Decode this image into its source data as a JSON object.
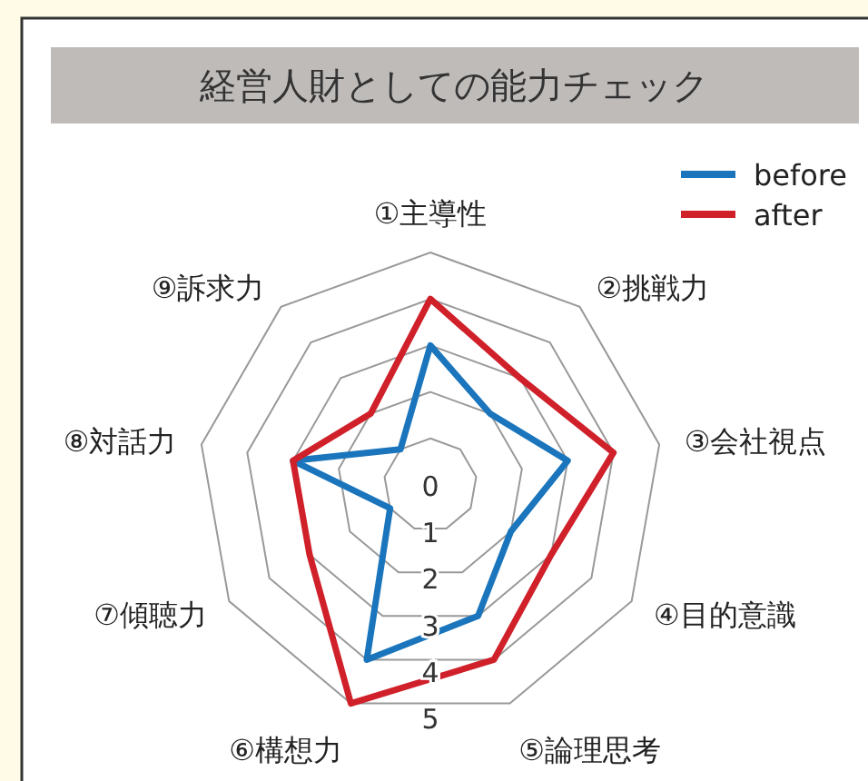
{
  "chart_data": {
    "type": "radar",
    "title": "経営人財としての能力チェック",
    "categories": [
      "①主導性",
      "②挑戦力",
      "③会社視点",
      "④目的意識",
      "⑤論理思考",
      "⑥構想力",
      "⑦傾聴力",
      "⑧対話力",
      "⑨訴求力"
    ],
    "series": [
      {
        "name": "before",
        "color": "#1a75bc",
        "values": [
          3,
          2,
          3,
          2,
          3,
          4,
          1,
          3,
          1
        ]
      },
      {
        "name": "after",
        "color": "#d0202a",
        "values": [
          4,
          3,
          4,
          3,
          4,
          5,
          3,
          3,
          2
        ]
      }
    ],
    "ylim": [
      0,
      5
    ],
    "yticks": [
      0,
      1,
      2,
      3,
      4,
      5
    ],
    "legend": "top right",
    "grid": true
  }
}
